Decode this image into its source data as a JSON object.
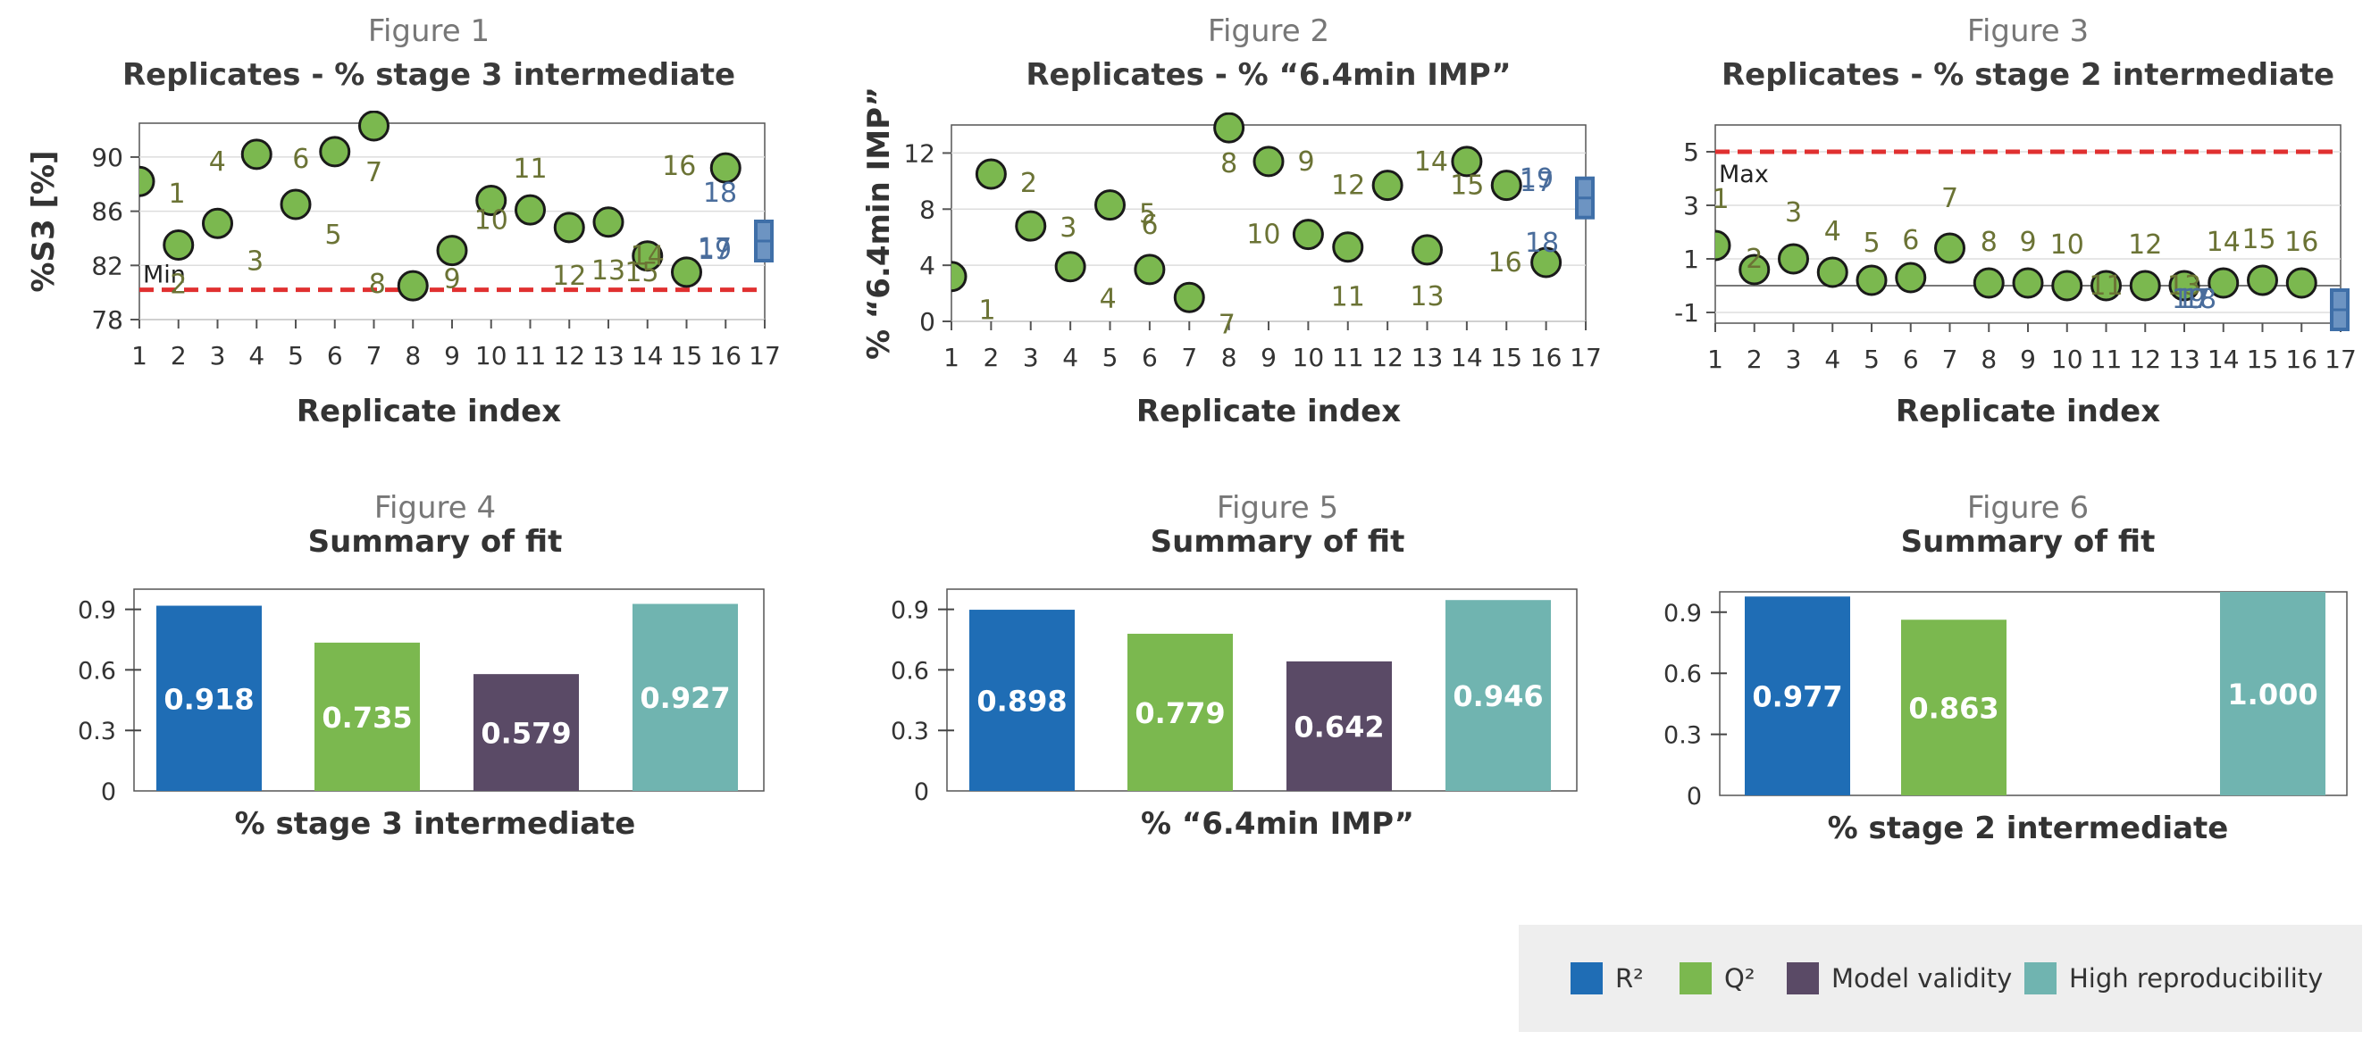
{
  "colors": {
    "r2": "#1f6db5",
    "q2": "#7bb84f",
    "validity": "#5a4a66",
    "repro": "#70b4b0",
    "point_fill": "#7bb84f",
    "limit_line": "#e03030",
    "label_olive": "#6b7335",
    "label_blue": "#4a6d9c"
  },
  "legend": [
    {
      "label": "R²",
      "color_key": "r2"
    },
    {
      "label": "Q²",
      "color_key": "q2"
    },
    {
      "label": "Model validity",
      "color_key": "validity"
    },
    {
      "label": "High reproducibility",
      "color_key": "repro"
    }
  ],
  "chart_data": [
    {
      "type": "scatter",
      "figure_label": "Figure 1",
      "title": "Replicates - % stage 3 intermediate",
      "xlabel": "Replicate index",
      "ylabel": "%S3 [%]",
      "xlim": [
        1,
        17
      ],
      "ylim": [
        78,
        92.5
      ],
      "xticks": [
        1,
        2,
        3,
        4,
        5,
        6,
        7,
        8,
        9,
        10,
        11,
        12,
        13,
        14,
        15,
        16,
        17
      ],
      "yticks": [
        78,
        82,
        86,
        90
      ],
      "points": [
        {
          "x": 1,
          "y": 88.2,
          "label": "1"
        },
        {
          "x": 2,
          "y": 83.5,
          "label": "2"
        },
        {
          "x": 3,
          "y": 85.1,
          "label": "3"
        },
        {
          "x": 4,
          "y": 90.2,
          "label": "4"
        },
        {
          "x": 5,
          "y": 86.5,
          "label": "5"
        },
        {
          "x": 6,
          "y": 90.4,
          "label": "6"
        },
        {
          "x": 7,
          "y": 92.3,
          "label": "7"
        },
        {
          "x": 8,
          "y": 80.5,
          "label": "8"
        },
        {
          "x": 9,
          "y": 83.1,
          "label": "9"
        },
        {
          "x": 10,
          "y": 86.8,
          "label": "10"
        },
        {
          "x": 11,
          "y": 86.1,
          "label": "11"
        },
        {
          "x": 12,
          "y": 84.8,
          "label": "12"
        },
        {
          "x": 13,
          "y": 85.2,
          "label": "13"
        },
        {
          "x": 14,
          "y": 82.7,
          "label": "14"
        },
        {
          "x": 15,
          "y": 81.5,
          "label": "15"
        },
        {
          "x": 16,
          "y": 89.2,
          "label": "16"
        }
      ],
      "extra_labels": [
        "17",
        "18",
        "19"
      ],
      "limit": {
        "value": 80.2,
        "label": "Min"
      }
    },
    {
      "type": "scatter",
      "figure_label": "Figure 2",
      "title": "Replicates - % “6.4min IMP”",
      "xlabel": "Replicate index",
      "ylabel": "% “6.4min IMP”",
      "xlim": [
        1,
        17
      ],
      "ylim": [
        0,
        14
      ],
      "xticks": [
        1,
        2,
        3,
        4,
        5,
        6,
        7,
        8,
        9,
        10,
        11,
        12,
        13,
        14,
        15,
        16,
        17
      ],
      "yticks": [
        0,
        4,
        8,
        12
      ],
      "points": [
        {
          "x": 1,
          "y": 3.2,
          "label": "1"
        },
        {
          "x": 2,
          "y": 10.5,
          "label": "2"
        },
        {
          "x": 3,
          "y": 6.8,
          "label": "3"
        },
        {
          "x": 4,
          "y": 3.9,
          "label": "4"
        },
        {
          "x": 5,
          "y": 8.3,
          "label": "5"
        },
        {
          "x": 6,
          "y": 3.7,
          "label": "6"
        },
        {
          "x": 7,
          "y": 1.7,
          "label": "7"
        },
        {
          "x": 8,
          "y": 13.8,
          "label": "8"
        },
        {
          "x": 9,
          "y": 11.4,
          "label": "9"
        },
        {
          "x": 10,
          "y": 6.2,
          "label": "10"
        },
        {
          "x": 11,
          "y": 5.3,
          "label": "11"
        },
        {
          "x": 12,
          "y": 9.7,
          "label": "12"
        },
        {
          "x": 13,
          "y": 5.1,
          "label": "13"
        },
        {
          "x": 14,
          "y": 11.4,
          "label": "14"
        },
        {
          "x": 15,
          "y": 9.7,
          "label": "15"
        },
        {
          "x": 16,
          "y": 4.2,
          "label": "16"
        }
      ],
      "extra_labels": [
        "17",
        "18",
        "19"
      ]
    },
    {
      "type": "scatter",
      "figure_label": "Figure 3",
      "title": "Replicates - % stage 2 intermediate",
      "xlabel": "Replicate index",
      "ylabel": "",
      "xlim": [
        1,
        17
      ],
      "ylim": [
        -1.4,
        6
      ],
      "xticks": [
        1,
        2,
        3,
        4,
        5,
        6,
        7,
        8,
        9,
        10,
        11,
        12,
        13,
        14,
        15,
        16,
        17
      ],
      "yticks": [
        -1,
        1,
        3,
        5
      ],
      "points": [
        {
          "x": 1,
          "y": 1.5,
          "label": "1"
        },
        {
          "x": 2,
          "y": 0.6,
          "label": "2"
        },
        {
          "x": 3,
          "y": 1.0,
          "label": "3"
        },
        {
          "x": 4,
          "y": 0.5,
          "label": "4"
        },
        {
          "x": 5,
          "y": 0.2,
          "label": "5"
        },
        {
          "x": 6,
          "y": 0.3,
          "label": "6"
        },
        {
          "x": 7,
          "y": 1.4,
          "label": "7"
        },
        {
          "x": 8,
          "y": 0.1,
          "label": "8"
        },
        {
          "x": 9,
          "y": 0.1,
          "label": "9"
        },
        {
          "x": 10,
          "y": 0.0,
          "label": "10"
        },
        {
          "x": 11,
          "y": 0.0,
          "label": "11"
        },
        {
          "x": 12,
          "y": 0.0,
          "label": "12"
        },
        {
          "x": 13,
          "y": 0.0,
          "label": "13"
        },
        {
          "x": 14,
          "y": 0.1,
          "label": "14"
        },
        {
          "x": 15,
          "y": 0.2,
          "label": "15"
        },
        {
          "x": 16,
          "y": 0.1,
          "label": "16"
        }
      ],
      "extra_labels": [
        "17",
        "18",
        "19"
      ],
      "limit": {
        "value": 5.0,
        "label": "Max"
      }
    },
    {
      "type": "bar",
      "figure_label": "Figure 4",
      "title": "Summary of fit",
      "xlabel": "% stage 3 intermediate",
      "ylim": [
        0,
        1
      ],
      "yticks": [
        0,
        0.3,
        0.6,
        0.9
      ],
      "series": [
        {
          "name": "R²",
          "value": 0.918,
          "label": "0.918"
        },
        {
          "name": "Q²",
          "value": 0.735,
          "label": "0.735"
        },
        {
          "name": "Model validity",
          "value": 0.579,
          "label": "0.579"
        },
        {
          "name": "High reproducibility",
          "value": 0.927,
          "label": "0.927"
        }
      ]
    },
    {
      "type": "bar",
      "figure_label": "Figure 5",
      "title": "Summary of fit",
      "xlabel": "% “6.4min IMP”",
      "ylim": [
        0,
        1
      ],
      "yticks": [
        0,
        0.3,
        0.6,
        0.9
      ],
      "series": [
        {
          "name": "R²",
          "value": 0.898,
          "label": "0.898"
        },
        {
          "name": "Q²",
          "value": 0.779,
          "label": "0.779"
        },
        {
          "name": "Model validity",
          "value": 0.642,
          "label": "0.642"
        },
        {
          "name": "High reproducibility",
          "value": 0.946,
          "label": "0.946"
        }
      ]
    },
    {
      "type": "bar",
      "figure_label": "Figure 6",
      "title": "Summary of fit",
      "xlabel": "% stage 2 intermediate",
      "ylim": [
        0,
        1
      ],
      "yticks": [
        0,
        0.3,
        0.6,
        0.9
      ],
      "series": [
        {
          "name": "R²",
          "value": 0.977,
          "label": "0.977"
        },
        {
          "name": "Q²",
          "value": 0.863,
          "label": "0.863"
        },
        {
          "name": "Model validity",
          "value": null,
          "label": ""
        },
        {
          "name": "High reproducibility",
          "value": 1.0,
          "label": "1.000"
        }
      ]
    }
  ]
}
